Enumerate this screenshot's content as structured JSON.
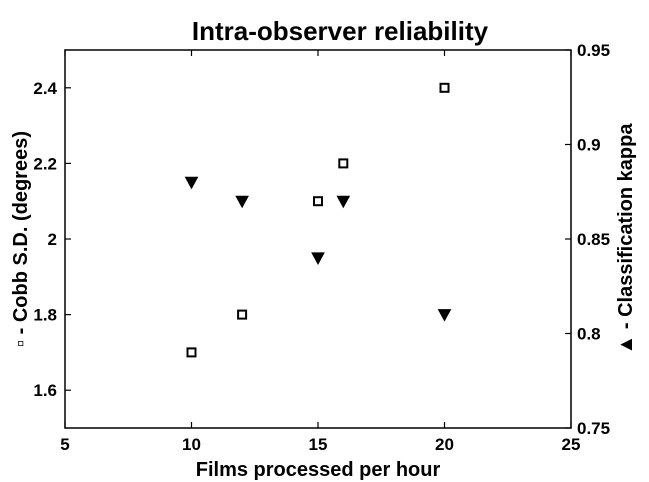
{
  "chart_data": {
    "type": "scatter",
    "title": "Intra-observer reliability",
    "xlabel": "Films processed per hour",
    "ylabel_left_marker": "▫",
    "ylabel_left": " - Cobb S.D. (degrees)",
    "ylabel_right_marker": "▲",
    "ylabel_right": " - Classification kappa",
    "xlim": [
      5,
      25
    ],
    "ylim_left": [
      1.5,
      2.5
    ],
    "ylim_right": [
      0.75,
      0.95
    ],
    "x_ticks": [
      "5",
      "10",
      "15",
      "20",
      "25"
    ],
    "x_tick_values": [
      5,
      10,
      15,
      20,
      25
    ],
    "y_left_ticks": [
      "1.6",
      "1.8",
      "2",
      "2.2",
      "2.4"
    ],
    "y_left_tick_values": [
      1.6,
      1.8,
      2.0,
      2.2,
      2.4
    ],
    "y_right_ticks": [
      "0.75",
      "0.8",
      "0.85",
      "0.9",
      "0.95"
    ],
    "y_right_tick_values": [
      0.75,
      0.8,
      0.85,
      0.9,
      0.95
    ],
    "grid": false,
    "colors": {
      "marker": "#000000",
      "axes": "#000000",
      "background": "#ffffff"
    },
    "series": [
      {
        "marker": "square",
        "axis": "left",
        "points": [
          {
            "x": 10,
            "y": 1.7
          },
          {
            "x": 12,
            "y": 1.8
          },
          {
            "x": 15,
            "y": 2.1
          },
          {
            "x": 16,
            "y": 2.2
          },
          {
            "x": 20,
            "y": 2.4
          }
        ]
      },
      {
        "marker": "triangle-down",
        "axis": "right",
        "points": [
          {
            "x": 10,
            "y": 0.88
          },
          {
            "x": 12,
            "y": 0.87
          },
          {
            "x": 15,
            "y": 0.84
          },
          {
            "x": 16,
            "y": 0.87
          },
          {
            "x": 20,
            "y": 0.81
          }
        ]
      }
    ]
  }
}
